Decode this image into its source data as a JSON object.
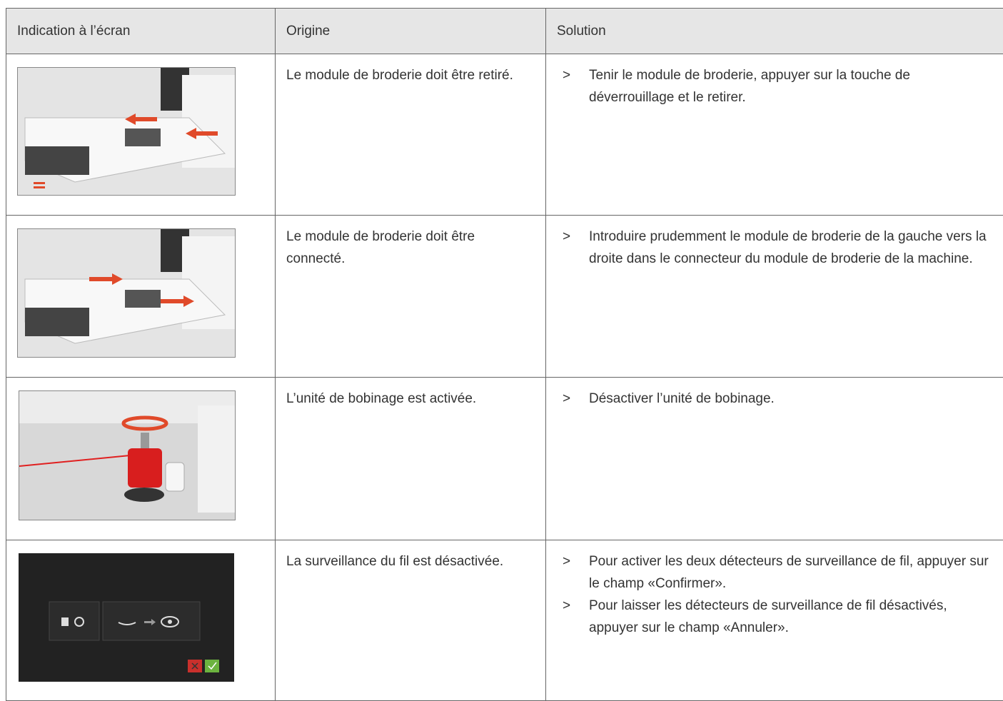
{
  "table": {
    "header": [
      "Indication à l’écran",
      "Origine",
      "Solution"
    ],
    "bullet": ">",
    "rows": [
      {
        "origin": "Le module de broderie doit être retiré.",
        "solutions": [
          "Tenir le module de broderie, appuyer sur la touche de déverrouillage et le retirer."
        ]
      },
      {
        "origin": "Le module de broderie doit être connecté.",
        "solutions": [
          "Introduire prudemment le module de broderie de la gauche vers la droite dans le connecteur du module de broderie de la machine."
        ]
      },
      {
        "origin": "L’unité de bobinage est activée.",
        "solutions": [
          "Désactiver l’unité de bobinage."
        ]
      },
      {
        "origin": "La surveillance du fil est désactivée.",
        "solutions": [
          "Pour activer les deux détecteurs de surveillance de fil, appuyer sur le champ «Confirmer».",
          "Pour laisser les détecteurs de surveillance de fil désactivés, appuyer sur le champ «Annuler»."
        ]
      }
    ]
  }
}
